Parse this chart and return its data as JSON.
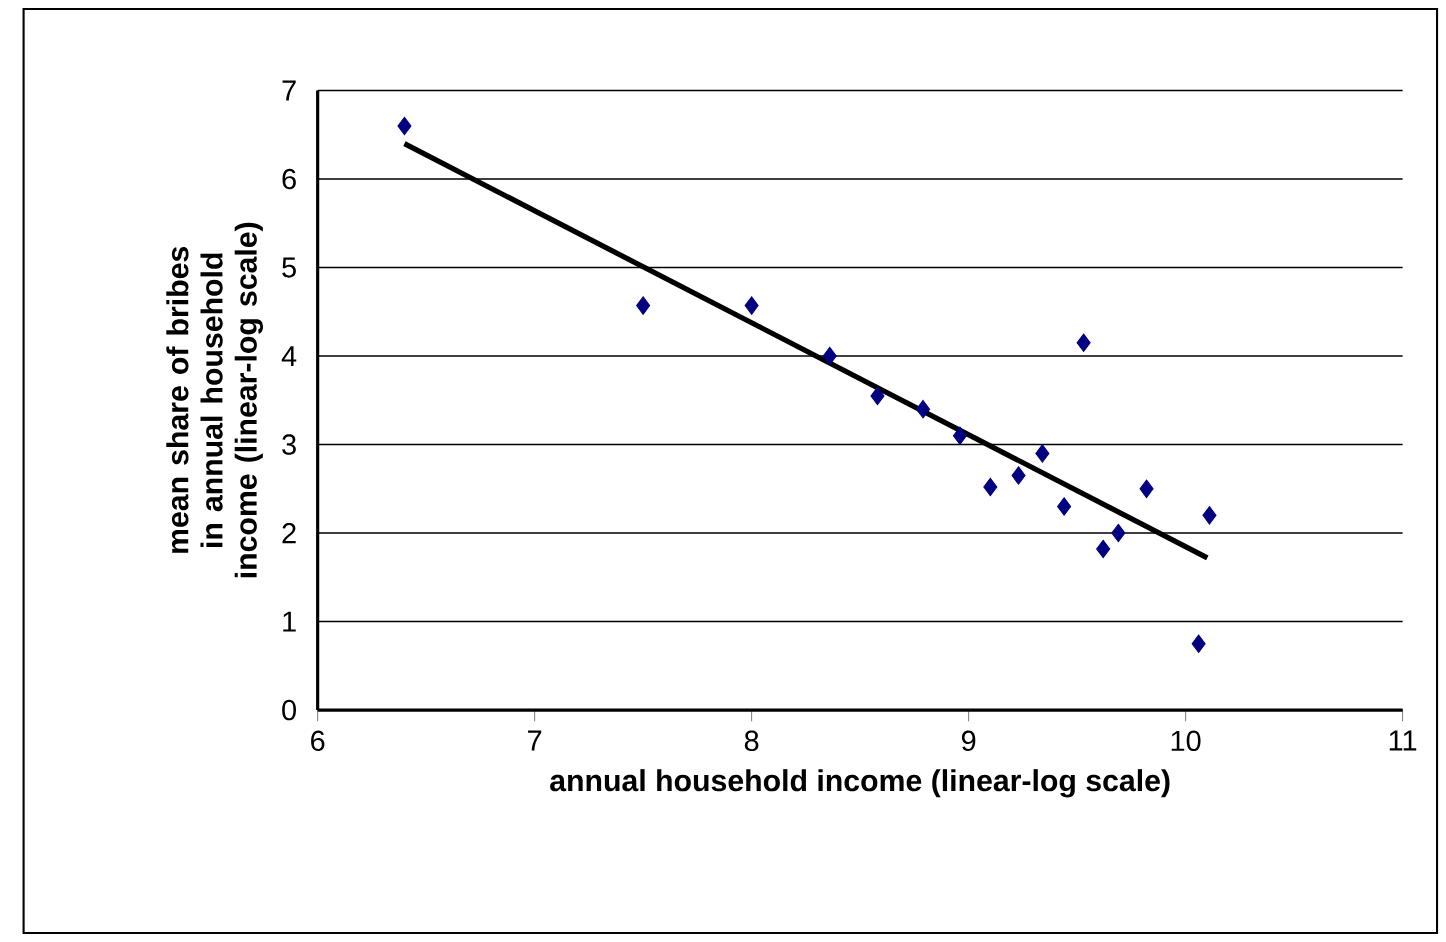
{
  "chart_data": {
    "type": "scatter",
    "xlabel": "annual household income (linear-log scale)",
    "ylabel": "mean share of bribes in annual household income (linear-log scale)",
    "xlim": [
      6,
      11
    ],
    "xticks": [
      6,
      7,
      8,
      9,
      10,
      11
    ],
    "ylim": [
      0,
      7
    ],
    "yticks": [
      0,
      1,
      2,
      3,
      4,
      5,
      6,
      7
    ],
    "grid": "y",
    "series": [
      {
        "color": "#000080",
        "marker": "diamond",
        "x": [
          6.4,
          7.5,
          8.0,
          8.36,
          8.58,
          8.79,
          8.96,
          9.1,
          9.23,
          9.34,
          9.44,
          9.53,
          9.62,
          9.69,
          9.82,
          10.06,
          10.11
        ],
        "values": [
          6.6,
          4.57,
          4.57,
          4.0,
          3.55,
          3.4,
          3.1,
          2.52,
          2.65,
          2.9,
          2.3,
          4.15,
          1.82,
          2.0,
          2.5,
          0.75,
          2.2
        ]
      },
      {
        "type": "line",
        "color": "#000000",
        "marker": "none",
        "x": [
          6.4,
          10.1
        ],
        "values": [
          6.4,
          1.72
        ]
      }
    ]
  }
}
